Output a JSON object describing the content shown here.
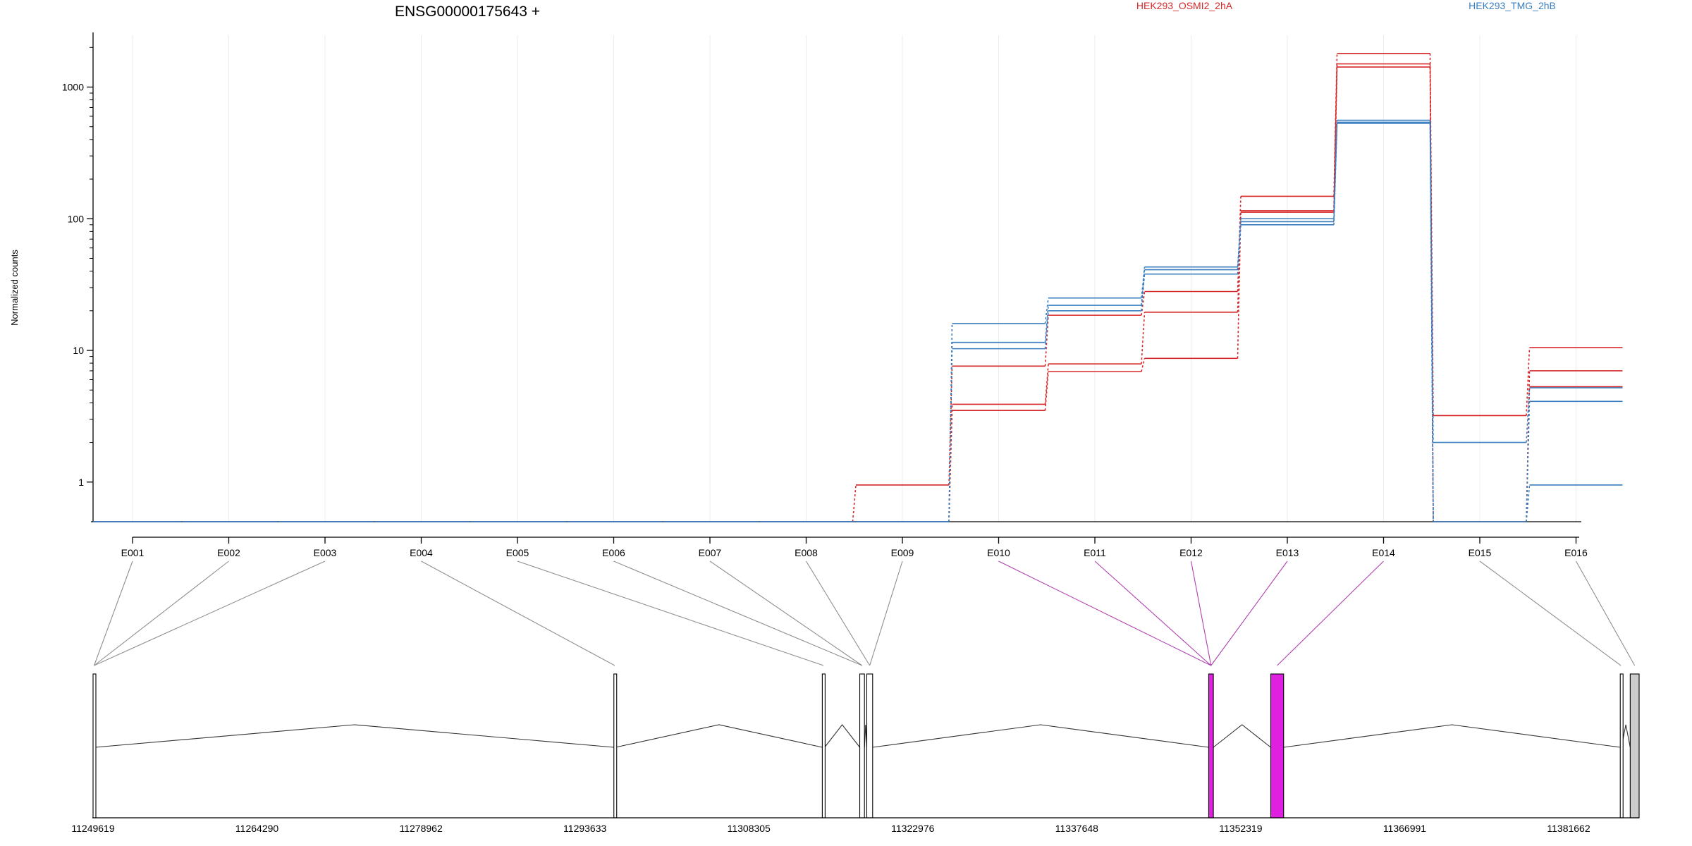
{
  "chart_data": {
    "type": "line",
    "title": "ENSG00000175643 +",
    "ylabel": "Normalized counts",
    "y_scale": "log",
    "y_ticks": [
      1,
      10,
      100,
      1000
    ],
    "y_tick_labels": [
      "1",
      "10",
      "100",
      "1000"
    ],
    "categories": [
      "E001",
      "E002",
      "E003",
      "E004",
      "E005",
      "E006",
      "E007",
      "E008",
      "E009",
      "E010",
      "E011",
      "E012",
      "E013",
      "E014",
      "E015",
      "E016"
    ],
    "legend": [
      {
        "name": "HEK293_OSMI2_2hA",
        "color": "#d62728"
      },
      {
        "name": "HEK293_TMG_2hB",
        "color": "#3a7ebf"
      }
    ],
    "series": [
      {
        "group": "HEK293_OSMI2_2hA",
        "values": [
          0.5,
          0.5,
          0.5,
          0.5,
          0.5,
          0.5,
          0.5,
          0.5,
          0.95,
          7.6,
          18.5,
          28,
          148,
          1800,
          3.2,
          10.5
        ]
      },
      {
        "group": "HEK293_OSMI2_2hA",
        "values": [
          0.5,
          0.5,
          0.5,
          0.5,
          0.5,
          0.5,
          0.5,
          0.5,
          0.5,
          3.9,
          7.9,
          19.5,
          115,
          1500,
          0.5,
          7
        ]
      },
      {
        "group": "HEK293_OSMI2_2hA",
        "values": [
          0.5,
          0.5,
          0.5,
          0.5,
          0.5,
          0.5,
          0.5,
          0.5,
          0.5,
          3.5,
          6.9,
          8.7,
          112,
          1420,
          0.5,
          5.3
        ]
      },
      {
        "group": "HEK293_TMG_2hB",
        "values": [
          0.5,
          0.5,
          0.5,
          0.5,
          0.5,
          0.5,
          0.5,
          0.5,
          0.5,
          16,
          25,
          43,
          100,
          560,
          2,
          5.2
        ]
      },
      {
        "group": "HEK293_TMG_2hB",
        "values": [
          0.5,
          0.5,
          0.5,
          0.5,
          0.5,
          0.5,
          0.5,
          0.5,
          0.5,
          11.5,
          22,
          41,
          95,
          540,
          0.5,
          4.1
        ]
      },
      {
        "group": "HEK293_TMG_2hB",
        "values": [
          0.5,
          0.5,
          0.5,
          0.5,
          0.5,
          0.5,
          0.5,
          0.5,
          0.5,
          10.3,
          20,
          38,
          90,
          530,
          0.5,
          0.95
        ]
      }
    ],
    "highlighted_exons": [
      "E010",
      "E011",
      "E012",
      "E013",
      "E014"
    ],
    "genomic_axis": {
      "range": [
        11249619,
        11381662
      ],
      "tick_labels": [
        "11249619",
        "11264290",
        "11278962",
        "11293633",
        "11308305",
        "11322976",
        "11337648",
        "11352319",
        "11366991",
        "11381662"
      ]
    },
    "gene_model": {
      "exons": [
        {
          "start": 11249619,
          "end": 11249800,
          "fill": "#ffffff",
          "highlighted": false
        },
        {
          "start": 11294100,
          "end": 11294250,
          "fill": "#ffffff",
          "highlighted": false
        },
        {
          "start": 11311900,
          "end": 11312100,
          "fill": "#ffffff",
          "highlighted": false
        },
        {
          "start": 11315100,
          "end": 11315500,
          "fill": "#ffffff",
          "highlighted": false
        },
        {
          "start": 11315700,
          "end": 11316200,
          "fill": "#ffffff",
          "highlighted": false
        },
        {
          "start": 11344900,
          "end": 11345300,
          "fill": "#e020e0",
          "highlighted": true
        },
        {
          "start": 11350200,
          "end": 11351300,
          "fill": "#e020e0",
          "highlighted": true
        },
        {
          "start": 11380050,
          "end": 11380150,
          "fill": "#ffffff",
          "highlighted": false
        },
        {
          "start": 11380900,
          "end": 11381662,
          "fill": "#cccccc",
          "highlighted": false
        }
      ],
      "exon_map": [
        0,
        0,
        0,
        1,
        2,
        3,
        3,
        4,
        4,
        5,
        5,
        5,
        5,
        6,
        7,
        8
      ]
    },
    "grid": true
  }
}
